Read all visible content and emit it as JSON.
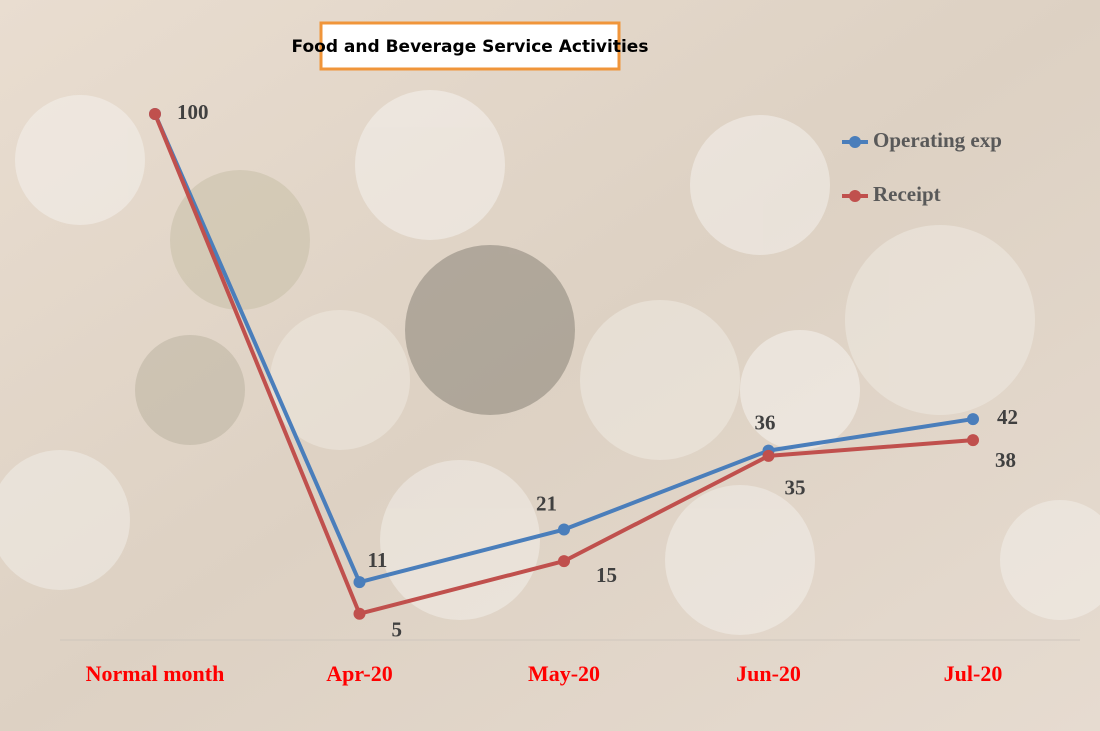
{
  "chart_data": {
    "type": "line",
    "title": "Food and Beverage Service Activities",
    "categories": [
      "Normal month",
      "Apr-20",
      "May-20",
      "Jun-20",
      "Jul-20"
    ],
    "series": [
      {
        "name": "Operating exp",
        "color": "#4a7ebb",
        "values": [
          100,
          11,
          21,
          36,
          42
        ]
      },
      {
        "name": "Receipt",
        "color": "#c0504d",
        "values": [
          100,
          5,
          15,
          35,
          38
        ]
      }
    ],
    "legend": "upper right"
  }
}
